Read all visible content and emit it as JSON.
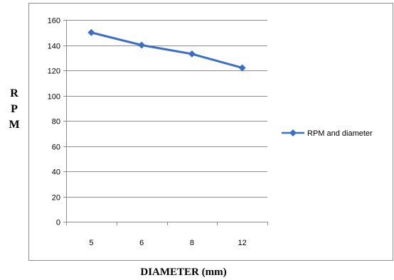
{
  "chart_data": {
    "type": "line",
    "categories": [
      "5",
      "6",
      "8",
      "12"
    ],
    "series": [
      {
        "name": "RPM and diameter",
        "values": [
          150,
          140,
          133,
          122
        ],
        "color": "#3A6FC4",
        "marker": "diamond"
      }
    ],
    "xlabel": "DIAMETER (mm)",
    "ylabel": "R P M",
    "ylabel_letters": [
      "R",
      "P",
      "M"
    ],
    "ylim": [
      0,
      160
    ],
    "yticks": [
      0,
      20,
      40,
      60,
      80,
      100,
      120,
      140,
      160
    ],
    "grid": "horizontal",
    "legend_position": "right"
  }
}
